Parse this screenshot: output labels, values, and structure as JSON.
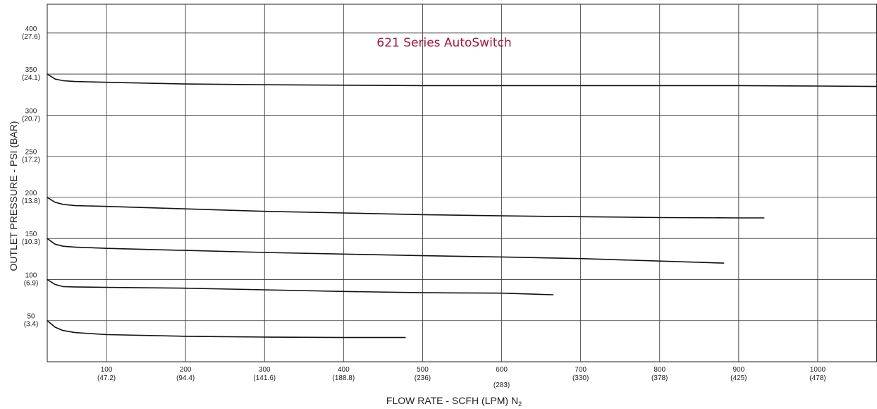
{
  "chart_data": {
    "type": "line",
    "title": "621 Series AutoSwitch",
    "title_color": "#A0193F",
    "xlabel": "FLOW RATE - SCFH (LPM) N",
    "xlabel_subscript": "2",
    "ylabel": "OUTLET PRESSURE - PSI (BAR)",
    "xlim": [
      25,
      1075
    ],
    "ylim": [
      0,
      435
    ],
    "grid": true,
    "legend": "none",
    "line_color": "#111111",
    "x_ticks": [
      {
        "value": 100,
        "label": "100",
        "sublabel": "(47.2)"
      },
      {
        "value": 200,
        "label": "200",
        "sublabel": "(94.4)"
      },
      {
        "value": 300,
        "label": "300",
        "sublabel": "(141.6)"
      },
      {
        "value": 400,
        "label": "400",
        "sublabel": "(188.8)"
      },
      {
        "value": 500,
        "label": "500",
        "sublabel": "(236)"
      },
      {
        "value": 600,
        "label": "600",
        "sublabel": "(283)"
      },
      {
        "value": 700,
        "label": "700",
        "sublabel": "(330)"
      },
      {
        "value": 800,
        "label": "800",
        "sublabel": "(378)"
      },
      {
        "value": 900,
        "label": "900",
        "sublabel": "(425)"
      },
      {
        "value": 1000,
        "label": "1000",
        "sublabel": "(478)"
      }
    ],
    "y_ticks": [
      {
        "value": 50,
        "label": "50",
        "sublabel": "(3.4)"
      },
      {
        "value": 100,
        "label": "100",
        "sublabel": "(6.9)"
      },
      {
        "value": 150,
        "label": "150",
        "sublabel": "(10.3)"
      },
      {
        "value": 200,
        "label": "200",
        "sublabel": "(13.8)"
      },
      {
        "value": 250,
        "label": "250",
        "sublabel": "(17.2)"
      },
      {
        "value": 300,
        "label": "300",
        "sublabel": "(20.7)"
      },
      {
        "value": 350,
        "label": "350",
        "sublabel": "(24.1)"
      },
      {
        "value": 400,
        "label": "400",
        "sublabel": "(27.6)"
      }
    ],
    "series": [
      {
        "x": [
          25,
          35,
          45,
          60,
          100,
          200,
          300,
          400,
          500,
          600,
          700,
          800,
          900,
          1000,
          1075
        ],
        "y": [
          350,
          344,
          342,
          341,
          340,
          338,
          337,
          336.5,
          336,
          336,
          336,
          336,
          336,
          335.5,
          335
        ]
      },
      {
        "x": [
          25,
          35,
          45,
          60,
          100,
          200,
          300,
          400,
          500,
          600,
          700,
          800,
          900,
          932
        ],
        "y": [
          200,
          194,
          191.5,
          190,
          189,
          186,
          183,
          181,
          179,
          177.5,
          176.5,
          175.5,
          175,
          175
        ]
      },
      {
        "x": [
          25,
          35,
          45,
          60,
          100,
          200,
          300,
          400,
          500,
          600,
          700,
          800,
          881
        ],
        "y": [
          150,
          143,
          140.5,
          139.5,
          138,
          135.5,
          133,
          131,
          129,
          127.5,
          125.5,
          122.5,
          120
        ]
      },
      {
        "x": [
          25,
          35,
          45,
          60,
          100,
          200,
          300,
          400,
          500,
          600,
          665
        ],
        "y": [
          100,
          94,
          91.5,
          91,
          90.5,
          89.5,
          87.5,
          85.5,
          84,
          83.5,
          81.5
        ]
      },
      {
        "x": [
          25,
          35,
          45,
          60,
          100,
          200,
          300,
          400,
          478
        ],
        "y": [
          50,
          42,
          38,
          35.5,
          33,
          31,
          30,
          29.5,
          29.5
        ]
      }
    ]
  }
}
